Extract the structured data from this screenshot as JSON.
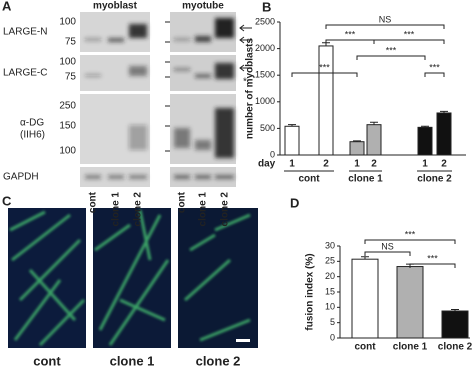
{
  "panel_a": {
    "letter": "A",
    "conditions": [
      "myoblast",
      "myotube"
    ],
    "rows": [
      {
        "label": [
          "LARGE-N"
        ],
        "markers": [
          100,
          75
        ]
      },
      {
        "label": [
          "LARGE-C"
        ],
        "markers": [
          100,
          75
        ]
      },
      {
        "label": [
          "α-DG",
          "(IIH6)"
        ],
        "markers": [
          250,
          150,
          100
        ]
      },
      {
        "label": [
          "GAPDH"
        ],
        "markers": []
      }
    ],
    "lanes": [
      "cont",
      "clone 1",
      "clone 2"
    ],
    "band_note": "*"
  },
  "panel_c": {
    "letter": "C",
    "images": [
      "cont",
      "clone 1",
      "clone 2"
    ]
  },
  "chart_data": [
    {
      "type": "bar",
      "letter": "B",
      "y_label": "number of myoblasts",
      "x_label": "day",
      "categories": [
        "1",
        "2",
        "1",
        "2",
        "1",
        "2"
      ],
      "groups": [
        "cont",
        "clone 1",
        "clone 2"
      ],
      "values": [
        540,
        2050,
        250,
        570,
        520,
        790
      ],
      "errors": [
        30,
        60,
        15,
        45,
        20,
        30
      ],
      "colors": [
        "#ffffff",
        "#ffffff",
        "#b0b0b0",
        "#b0b0b0",
        "#111111",
        "#111111"
      ],
      "ylim": [
        0,
        2500
      ],
      "yticks": [
        0,
        500,
        1000,
        1500,
        2000,
        2500
      ],
      "annotations": [
        "NS",
        "***",
        "***",
        "***",
        "***",
        "***"
      ]
    },
    {
      "type": "bar",
      "letter": "D",
      "y_label": "fusion index (%)",
      "categories": [
        "cont",
        "clone 1",
        "clone 2"
      ],
      "values": [
        25.7,
        23.3,
        8.8
      ],
      "errors": [
        0.8,
        0.8,
        0.5
      ],
      "colors": [
        "#ffffff",
        "#b0b0b0",
        "#111111"
      ],
      "ylim": [
        0,
        30
      ],
      "yticks": [
        0,
        5,
        10,
        15,
        20,
        25,
        30
      ],
      "annotations": [
        "NS",
        "***",
        "***"
      ]
    }
  ]
}
